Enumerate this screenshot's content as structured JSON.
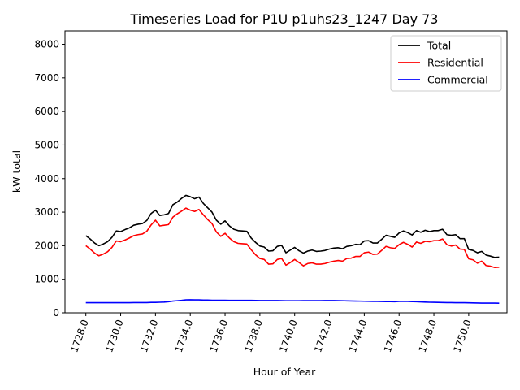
{
  "chart_data": {
    "type": "line",
    "title": "Timeseries Load for P1U p1uhs23_1247  Day 73",
    "xlabel": "Hour of Year",
    "ylabel": "kW total",
    "xlim": [
      1726.8,
      1752.2
    ],
    "ylim": [
      0,
      8400
    ],
    "x_ticks": [
      1728,
      1730,
      1732,
      1734,
      1736,
      1738,
      1740,
      1742,
      1744,
      1746,
      1748,
      1750
    ],
    "x_tick_labels": [
      "1728.0",
      "1730.0",
      "1732.0",
      "1734.0",
      "1736.0",
      "1738.0",
      "1740.0",
      "1742.0",
      "1744.0",
      "1746.0",
      "1748.0",
      "1750.0"
    ],
    "y_ticks": [
      0,
      1000,
      2000,
      3000,
      4000,
      5000,
      6000,
      7000,
      8000
    ],
    "y_tick_labels": [
      "0",
      "1000",
      "2000",
      "3000",
      "4000",
      "5000",
      "6000",
      "7000",
      "8000"
    ],
    "grid": false,
    "legend_position": "top-right",
    "x_start": 1728,
    "x_step": 0.25,
    "series": [
      {
        "name": "Total",
        "color": "#000000",
        "values": [
          2300,
          2200,
          2080,
          2000,
          2050,
          2120,
          2250,
          2440,
          2420,
          2480,
          2530,
          2610,
          2640,
          2660,
          2750,
          2960,
          3060,
          2900,
          2920,
          2960,
          3220,
          3300,
          3410,
          3500,
          3460,
          3400,
          3450,
          3260,
          3130,
          3000,
          2760,
          2640,
          2740,
          2590,
          2490,
          2450,
          2440,
          2430,
          2230,
          2100,
          1990,
          1960,
          1840,
          1850,
          1980,
          2010,
          1790,
          1870,
          1950,
          1850,
          1780,
          1840,
          1870,
          1830,
          1840,
          1860,
          1900,
          1930,
          1940,
          1910,
          1980,
          2000,
          2040,
          2030,
          2140,
          2150,
          2080,
          2080,
          2190,
          2310,
          2280,
          2250,
          2380,
          2440,
          2390,
          2320,
          2450,
          2400,
          2460,
          2420,
          2450,
          2450,
          2490,
          2330,
          2310,
          2330,
          2210,
          2210,
          1890,
          1860,
          1790,
          1830,
          1720,
          1690,
          1650,
          1660
        ]
      },
      {
        "name": "Residential",
        "color": "#ff0000",
        "values": [
          2000,
          1900,
          1780,
          1700,
          1750,
          1820,
          1950,
          2140,
          2120,
          2170,
          2230,
          2300,
          2330,
          2350,
          2430,
          2620,
          2760,
          2590,
          2610,
          2630,
          2850,
          2950,
          3030,
          3120,
          3060,
          3020,
          3080,
          2920,
          2780,
          2660,
          2410,
          2280,
          2370,
          2230,
          2120,
          2070,
          2060,
          2050,
          1880,
          1730,
          1620,
          1590,
          1450,
          1460,
          1590,
          1620,
          1420,
          1500,
          1590,
          1500,
          1400,
          1470,
          1490,
          1450,
          1450,
          1470,
          1510,
          1540,
          1560,
          1540,
          1620,
          1630,
          1680,
          1680,
          1790,
          1810,
          1740,
          1750,
          1860,
          1980,
          1940,
          1920,
          2030,
          2100,
          2040,
          1960,
          2110,
          2070,
          2130,
          2120,
          2150,
          2150,
          2200,
          2030,
          1990,
          2020,
          1900,
          1890,
          1610,
          1580,
          1480,
          1540,
          1410,
          1390,
          1350,
          1360
        ]
      },
      {
        "name": "Commercial",
        "color": "#0000ff",
        "values": [
          300,
          300,
          300,
          300,
          300,
          300,
          300,
          300,
          300,
          300,
          300,
          305,
          305,
          305,
          305,
          310,
          310,
          315,
          320,
          330,
          350,
          360,
          370,
          385,
          390,
          385,
          385,
          380,
          380,
          375,
          375,
          375,
          375,
          370,
          370,
          370,
          370,
          370,
          370,
          368,
          365,
          365,
          365,
          365,
          365,
          362,
          360,
          360,
          360,
          360,
          362,
          362,
          362,
          362,
          362,
          365,
          365,
          365,
          362,
          360,
          355,
          352,
          350,
          348,
          345,
          342,
          340,
          340,
          338,
          335,
          333,
          330,
          340,
          340,
          340,
          335,
          330,
          325,
          320,
          315,
          312,
          310,
          308,
          305,
          305,
          302,
          300,
          300,
          298,
          295,
          292,
          290,
          290,
          288,
          288,
          285
        ]
      }
    ]
  }
}
